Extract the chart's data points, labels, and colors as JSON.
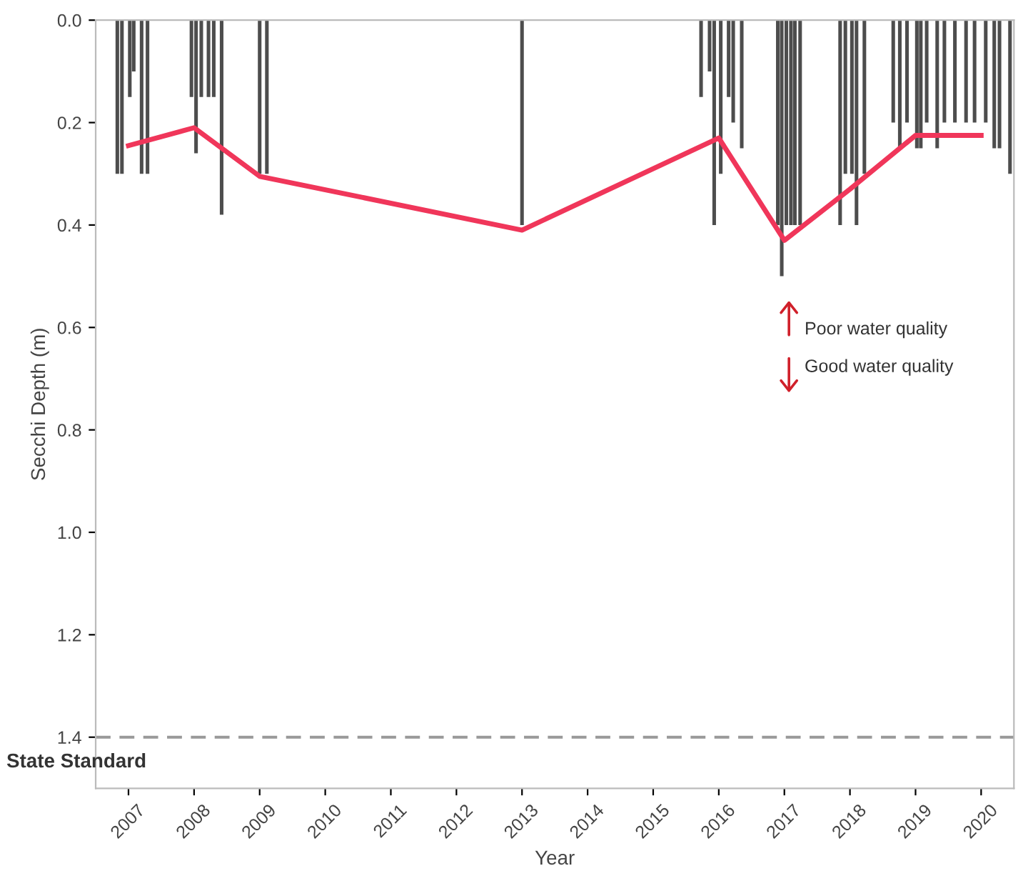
{
  "chart_data": {
    "type": "bar",
    "xlabel": "Year",
    "ylabel": "Secchi Depth (m)",
    "xlim": [
      2006.5,
      2020.5
    ],
    "ylim": [
      1.5,
      0
    ],
    "xticks": [
      2007,
      2008,
      2009,
      2010,
      2011,
      2012,
      2013,
      2014,
      2015,
      2016,
      2017,
      2018,
      2019,
      2020
    ],
    "yticks": [
      {
        "value": 0,
        "label": "0.0"
      },
      {
        "value": 0.2,
        "label": "0.2"
      },
      {
        "value": 0.4,
        "label": "0.4"
      },
      {
        "value": 0.6,
        "label": "0.6"
      },
      {
        "value": 0.8,
        "label": "0.8"
      },
      {
        "value": 1.0,
        "label": "1.0"
      },
      {
        "value": 1.2,
        "label": "1.2"
      },
      {
        "value": 1.4,
        "label": "1.4"
      }
    ],
    "grid": false,
    "series": [
      {
        "color": "#4d4d4d",
        "x": [
          2006.83,
          2006.9,
          2007.02,
          2007.08,
          2007.2,
          2007.29,
          2007.96,
          2008.03,
          2008.11,
          2008.22,
          2008.3,
          2008.42,
          2009.0,
          2009.11,
          2013.0,
          2015.73,
          2015.86,
          2015.93,
          2016.03,
          2016.15,
          2016.22,
          2016.35,
          2016.9,
          2016.96,
          2017.03,
          2017.1,
          2017.16,
          2017.24,
          2017.85,
          2017.93,
          2018.03,
          2018.1,
          2018.22,
          2018.66,
          2018.76,
          2018.87,
          2019.02,
          2019.08,
          2019.17,
          2019.33,
          2019.44,
          2019.6,
          2019.77,
          2019.9,
          2020.07,
          2020.2,
          2020.28,
          2020.44
        ],
        "values": [
          0.3,
          0.3,
          0.15,
          0.1,
          0.3,
          0.3,
          0.15,
          0.26,
          0.15,
          0.15,
          0.15,
          0.38,
          0.3,
          0.3,
          0.4,
          0.15,
          0.1,
          0.4,
          0.3,
          0.15,
          0.2,
          0.25,
          0.4,
          0.5,
          0.4,
          0.4,
          0.4,
          0.4,
          0.4,
          0.3,
          0.3,
          0.4,
          0.3,
          0.2,
          0.25,
          0.2,
          0.25,
          0.25,
          0.2,
          0.25,
          0.2,
          0.2,
          0.2,
          0.2,
          0.2,
          0.25,
          0.25,
          0.3
        ]
      },
      {
        "type": "line",
        "color": "#f0365a",
        "x": [
          2007,
          2008,
          2009,
          2013,
          2016,
          2017,
          2018,
          2019,
          2020
        ],
        "values": [
          0.245,
          0.21,
          0.305,
          0.41,
          0.23,
          0.43,
          0.33,
          0.225,
          0.225
        ]
      }
    ],
    "ref_lines": [
      {
        "axis": "y",
        "value": 1.4,
        "label": "State Standard",
        "color": "#999999",
        "line_style": "dashed"
      }
    ],
    "annotations": [
      "Poor water quality",
      "Good water quality"
    ]
  }
}
